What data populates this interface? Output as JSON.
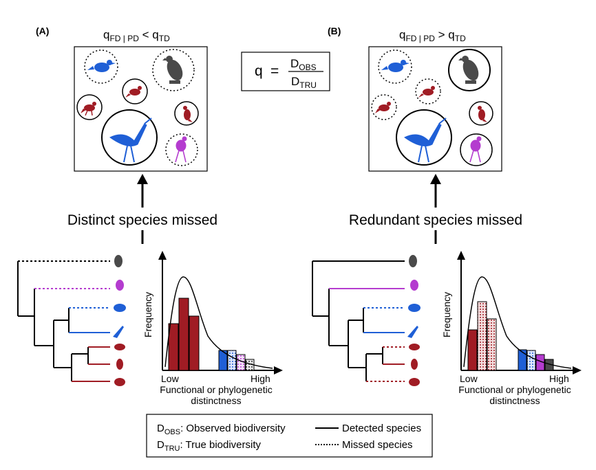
{
  "panelA": {
    "label": "(A)",
    "title": {
      "q": "q",
      "sub1": "FD | PD",
      "rel": " < q",
      "sub2": "TD"
    },
    "caption": "Distinct species missed",
    "chart": {
      "ylabel": "Frequency",
      "low": "Low",
      "high": "High",
      "xlabel1": "Functional or phylogenetic",
      "xlabel2": "distinctness"
    }
  },
  "panelB": {
    "label": "(B)",
    "title": {
      "q": "q",
      "sub1": "FD | PD",
      "rel": " > q",
      "sub2": "TD"
    },
    "caption": "Redundant species missed",
    "chart": {
      "ylabel": "Frequency",
      "low": "Low",
      "high": "High",
      "xlabel1": "Functional or phylogenetic",
      "xlabel2": "distinctness"
    }
  },
  "formula": {
    "lhs": "q",
    "eq": "=",
    "num": "D",
    "num_sub": "OBS",
    "den": "D",
    "den_sub": "TRU"
  },
  "legend": {
    "dobs": "D",
    "dobs_sub": "OBS",
    "dobs_text": ": Observed biodiversity",
    "dtru": "D",
    "dtru_sub": "TRU",
    "dtru_text": ": True biodiversity",
    "detected": "Detected species",
    "missed": "Missed species"
  },
  "colors": {
    "blue": "#1f5fd6",
    "red": "#a01c24",
    "purple": "#b43ccf",
    "gray": "#4a4a4a"
  }
}
